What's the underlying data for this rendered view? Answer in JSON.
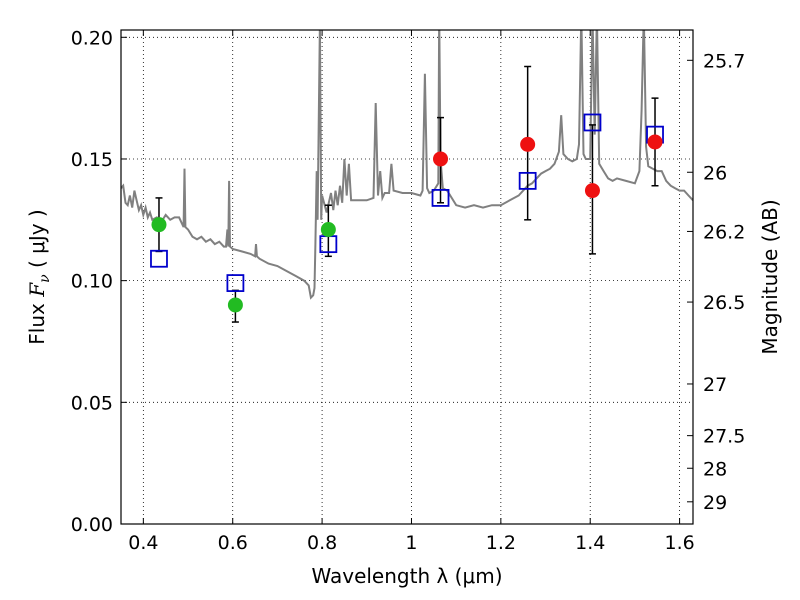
{
  "chart_data": {
    "type": "scatter",
    "title": "",
    "xlabel": "Wavelength  λ (μm)",
    "ylabel_prefix": "Flux  ",
    "ylabel_symbol": "F",
    "ylabel_subscript": "ν",
    "ylabel_suffix": "  ( μJy )",
    "ylabel_right": "Magnitude (AB)",
    "xlim": [
      0.35,
      1.63
    ],
    "ylim": [
      0.0,
      0.203
    ],
    "x_ticks": [
      {
        "value": 0.4,
        "label": "0.4"
      },
      {
        "value": 0.6,
        "label": "0.6"
      },
      {
        "value": 0.8,
        "label": "0.8"
      },
      {
        "value": 1.0,
        "label": "1"
      },
      {
        "value": 1.2,
        "label": "1.2"
      },
      {
        "value": 1.4,
        "label": "1.4"
      },
      {
        "value": 1.6,
        "label": "1.6"
      }
    ],
    "y_ticks": [
      {
        "value": 0.0,
        "label": "0.00"
      },
      {
        "value": 0.05,
        "label": "0.05"
      },
      {
        "value": 0.1,
        "label": "0.10"
      },
      {
        "value": 0.15,
        "label": "0.15"
      },
      {
        "value": 0.2,
        "label": "0.20"
      }
    ],
    "right_ticks": [
      {
        "label": "25.7"
      },
      {
        "label": "26"
      },
      {
        "label": "26.2"
      },
      {
        "label": "26.5"
      },
      {
        "label": "27"
      },
      {
        "label": "27.5"
      },
      {
        "label": "28"
      },
      {
        "label": "29"
      }
    ],
    "grid": true,
    "grid_style": "dotted",
    "colors": {
      "model_spectrum": "#808080",
      "optical_points": "#22bb22",
      "nir_points": "#ee1111",
      "model_photometry": "#0000cc",
      "error_bars": "#000000"
    },
    "series": [
      {
        "marker": "circle",
        "color": "#22bb22",
        "points": [
          {
            "x": 0.435,
            "y": 0.123,
            "yerr_low": 0.112,
            "yerr_high": 0.134
          },
          {
            "x": 0.606,
            "y": 0.09,
            "yerr_low": 0.083,
            "yerr_high": 0.096
          },
          {
            "x": 0.814,
            "y": 0.121,
            "yerr_low": 0.11,
            "yerr_high": 0.131
          }
        ]
      },
      {
        "marker": "circle",
        "color": "#ee1111",
        "points": [
          {
            "x": 1.065,
            "y": 0.15,
            "yerr_low": 0.132,
            "yerr_high": 0.167
          },
          {
            "x": 1.26,
            "y": 0.156,
            "yerr_low": 0.125,
            "yerr_high": 0.188
          },
          {
            "x": 1.405,
            "y": 0.137,
            "yerr_low": 0.111,
            "yerr_high": 0.164
          },
          {
            "x": 1.545,
            "y": 0.157,
            "yerr_low": 0.139,
            "yerr_high": 0.175
          }
        ]
      },
      {
        "marker": "open-square",
        "color": "#0000cc",
        "points": [
          {
            "x": 0.435,
            "y": 0.109
          },
          {
            "x": 0.606,
            "y": 0.099
          },
          {
            "x": 0.814,
            "y": 0.115
          },
          {
            "x": 1.065,
            "y": 0.134
          },
          {
            "x": 1.26,
            "y": 0.141
          },
          {
            "x": 1.405,
            "y": 0.165
          },
          {
            "x": 1.545,
            "y": 0.16
          }
        ]
      },
      {
        "marker": "line",
        "color": "#808080",
        "points": [
          [
            0.35,
            0.138
          ],
          [
            0.355,
            0.139
          ],
          [
            0.36,
            0.132
          ],
          [
            0.365,
            0.131
          ],
          [
            0.37,
            0.135
          ],
          [
            0.375,
            0.13
          ],
          [
            0.38,
            0.137
          ],
          [
            0.385,
            0.133
          ],
          [
            0.39,
            0.129
          ],
          [
            0.395,
            0.131
          ],
          [
            0.4,
            0.127
          ],
          [
            0.405,
            0.13
          ],
          [
            0.41,
            0.126
          ],
          [
            0.415,
            0.128
          ],
          [
            0.42,
            0.125
          ],
          [
            0.43,
            0.126
          ],
          [
            0.44,
            0.124
          ],
          [
            0.45,
            0.127
          ],
          [
            0.46,
            0.125
          ],
          [
            0.47,
            0.126
          ],
          [
            0.48,
            0.126
          ],
          [
            0.485,
            0.124
          ],
          [
            0.49,
            0.122
          ],
          [
            0.492,
            0.146
          ],
          [
            0.494,
            0.122
          ],
          [
            0.5,
            0.121
          ],
          [
            0.51,
            0.118
          ],
          [
            0.52,
            0.117
          ],
          [
            0.53,
            0.118
          ],
          [
            0.54,
            0.116
          ],
          [
            0.55,
            0.117
          ],
          [
            0.56,
            0.115
          ],
          [
            0.57,
            0.116
          ],
          [
            0.58,
            0.114
          ],
          [
            0.585,
            0.114
          ],
          [
            0.588,
            0.121
          ],
          [
            0.59,
            0.114
          ],
          [
            0.592,
            0.141
          ],
          [
            0.594,
            0.114
          ],
          [
            0.6,
            0.113
          ],
          [
            0.62,
            0.112
          ],
          [
            0.64,
            0.111
          ],
          [
            0.65,
            0.11
          ],
          [
            0.652,
            0.115
          ],
          [
            0.654,
            0.11
          ],
          [
            0.66,
            0.109
          ],
          [
            0.68,
            0.107
          ],
          [
            0.7,
            0.106
          ],
          [
            0.72,
            0.104
          ],
          [
            0.74,
            0.102
          ],
          [
            0.76,
            0.1
          ],
          [
            0.77,
            0.098
          ],
          [
            0.775,
            0.093
          ],
          [
            0.78,
            0.094
          ],
          [
            0.783,
            0.097
          ],
          [
            0.785,
            0.115
          ],
          [
            0.788,
            0.145
          ],
          [
            0.79,
            0.125
          ],
          [
            0.795,
            0.206
          ],
          [
            0.798,
            0.125
          ],
          [
            0.8,
            0.135
          ],
          [
            0.81,
            0.128
          ],
          [
            0.82,
            0.136
          ],
          [
            0.825,
            0.129
          ],
          [
            0.83,
            0.137
          ],
          [
            0.835,
            0.131
          ],
          [
            0.84,
            0.139
          ],
          [
            0.845,
            0.132
          ],
          [
            0.85,
            0.15
          ],
          [
            0.855,
            0.135
          ],
          [
            0.86,
            0.148
          ],
          [
            0.865,
            0.133
          ],
          [
            0.87,
            0.133
          ],
          [
            0.88,
            0.133
          ],
          [
            0.9,
            0.133
          ],
          [
            0.915,
            0.134
          ],
          [
            0.92,
            0.173
          ],
          [
            0.925,
            0.135
          ],
          [
            0.93,
            0.145
          ],
          [
            0.935,
            0.134
          ],
          [
            0.94,
            0.136
          ],
          [
            0.95,
            0.136
          ],
          [
            0.955,
            0.148
          ],
          [
            0.96,
            0.137
          ],
          [
            0.98,
            0.136
          ],
          [
            1.0,
            0.136
          ],
          [
            1.02,
            0.135
          ],
          [
            1.025,
            0.137
          ],
          [
            1.03,
            0.185
          ],
          [
            1.035,
            0.138
          ],
          [
            1.04,
            0.136
          ],
          [
            1.05,
            0.137
          ],
          [
            1.06,
            0.14
          ],
          [
            1.062,
            0.21
          ],
          [
            1.065,
            0.15
          ],
          [
            1.07,
            0.138
          ],
          [
            1.08,
            0.137
          ],
          [
            1.09,
            0.134
          ],
          [
            1.1,
            0.131
          ],
          [
            1.12,
            0.13
          ],
          [
            1.14,
            0.131
          ],
          [
            1.16,
            0.13
          ],
          [
            1.18,
            0.131
          ],
          [
            1.2,
            0.131
          ],
          [
            1.22,
            0.133
          ],
          [
            1.24,
            0.135
          ],
          [
            1.25,
            0.137
          ],
          [
            1.26,
            0.139
          ],
          [
            1.27,
            0.14
          ],
          [
            1.28,
            0.142
          ],
          [
            1.29,
            0.144
          ],
          [
            1.3,
            0.145
          ],
          [
            1.31,
            0.146
          ],
          [
            1.32,
            0.148
          ],
          [
            1.33,
            0.153
          ],
          [
            1.335,
            0.168
          ],
          [
            1.34,
            0.152
          ],
          [
            1.35,
            0.15
          ],
          [
            1.36,
            0.149
          ],
          [
            1.37,
            0.15
          ],
          [
            1.375,
            0.156
          ],
          [
            1.38,
            0.21
          ],
          [
            1.385,
            0.152
          ],
          [
            1.39,
            0.15
          ],
          [
            1.4,
            0.15
          ],
          [
            1.405,
            0.21
          ],
          [
            1.41,
            0.16
          ],
          [
            1.415,
            0.21
          ],
          [
            1.42,
            0.148
          ],
          [
            1.43,
            0.145
          ],
          [
            1.44,
            0.142
          ],
          [
            1.45,
            0.141
          ],
          [
            1.46,
            0.142
          ],
          [
            1.48,
            0.141
          ],
          [
            1.5,
            0.14
          ],
          [
            1.51,
            0.145
          ],
          [
            1.515,
            0.17
          ],
          [
            1.52,
            0.21
          ],
          [
            1.525,
            0.155
          ],
          [
            1.53,
            0.147
          ],
          [
            1.54,
            0.146
          ],
          [
            1.55,
            0.145
          ],
          [
            1.56,
            0.145
          ],
          [
            1.57,
            0.141
          ],
          [
            1.58,
            0.139
          ],
          [
            1.59,
            0.138
          ],
          [
            1.6,
            0.137
          ],
          [
            1.61,
            0.137
          ],
          [
            1.62,
            0.135
          ],
          [
            1.63,
            0.133
          ]
        ]
      }
    ]
  }
}
